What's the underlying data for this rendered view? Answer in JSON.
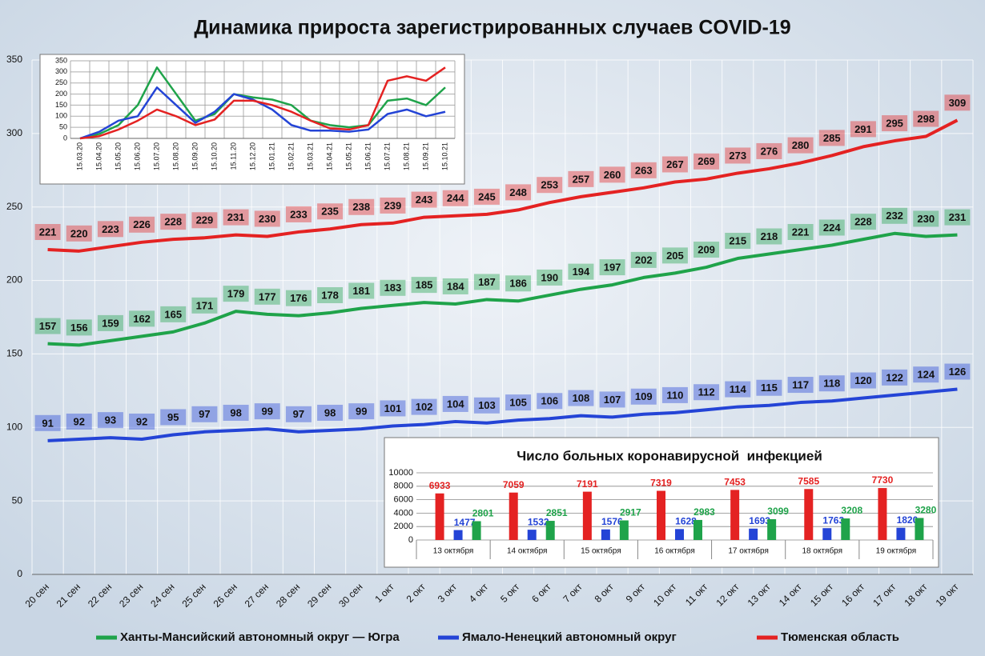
{
  "chart_data": [
    {
      "type": "line",
      "title": "Динамика прироста зарегистрированных случаев COVID-19",
      "categories": [
        "20 сен",
        "21 сен",
        "22 сен",
        "23 сен",
        "24 сен",
        "25 сен",
        "26 сен",
        "27 сен",
        "28 сен",
        "29 сен",
        "30 сен",
        "1 окт",
        "2 окт",
        "3 окт",
        "4 окт",
        "5 окт",
        "6 окт",
        "7 окт",
        "8 окт",
        "9 окт",
        "10 окт",
        "11 окт",
        "12 окт",
        "13 окт",
        "14 окт",
        "15 окт",
        "16 окт",
        "17 окт",
        "18 окт",
        "19 окт"
      ],
      "series": [
        {
          "name": "Ханты-Мансийский автономный округ — Югра",
          "color": "#1fa34a",
          "values": [
            157,
            156,
            159,
            162,
            165,
            171,
            179,
            177,
            176,
            178,
            181,
            183,
            185,
            184,
            187,
            186,
            190,
            194,
            197,
            202,
            205,
            209,
            215,
            218,
            221,
            224,
            228,
            232,
            230,
            231
          ]
        },
        {
          "name": "Ямало-Ненецкий автономный округ",
          "color": "#2444d6",
          "values": [
            91,
            92,
            93,
            92,
            95,
            97,
            98,
            99,
            97,
            98,
            99,
            101,
            102,
            104,
            103,
            105,
            106,
            108,
            107,
            109,
            110,
            112,
            114,
            115,
            117,
            118,
            120,
            122,
            124,
            126
          ]
        },
        {
          "name": "Тюменская область",
          "color": "#e42222",
          "values": [
            221,
            220,
            223,
            226,
            228,
            229,
            231,
            230,
            233,
            235,
            238,
            239,
            243,
            244,
            245,
            248,
            253,
            257,
            260,
            263,
            267,
            269,
            273,
            276,
            280,
            285,
            291,
            295,
            298,
            309
          ]
        }
      ],
      "ylim": [
        0,
        350
      ],
      "yticks": [
        0,
        50,
        100,
        150,
        200,
        250,
        300,
        350
      ],
      "grid": true,
      "legend": "bottom"
    },
    {
      "type": "line",
      "categories": [
        "15.03.20",
        "15.04.20",
        "15.05.20",
        "15.06.20",
        "15.07.20",
        "15.08.20",
        "15.09.20",
        "15.10.20",
        "15.11.20",
        "15.12.20",
        "15.01.21",
        "15.02.21",
        "15.03.21",
        "15.04.21",
        "15.05.21",
        "15.06.21",
        "15.07.21",
        "15.08.21",
        "15.09.21",
        "15.10.21"
      ],
      "series": [
        {
          "color": "#1fa34a",
          "values": [
            0,
            20,
            60,
            150,
            320,
            200,
            80,
            110,
            200,
            185,
            175,
            150,
            80,
            60,
            50,
            60,
            170,
            180,
            150,
            230
          ]
        },
        {
          "color": "#2444d6",
          "values": [
            0,
            30,
            80,
            100,
            230,
            150,
            70,
            120,
            200,
            175,
            130,
            60,
            35,
            35,
            30,
            40,
            110,
            130,
            100,
            120
          ]
        },
        {
          "color": "#e42222",
          "values": [
            0,
            10,
            40,
            80,
            130,
            100,
            60,
            85,
            170,
            170,
            150,
            120,
            80,
            45,
            40,
            60,
            260,
            280,
            260,
            320
          ]
        }
      ],
      "ylim": [
        0,
        350
      ],
      "yticks": [
        0,
        50,
        100,
        150,
        200,
        250,
        300,
        350
      ],
      "grid": true
    },
    {
      "type": "bar",
      "title": "Число больных коронавирусной  инфекцией",
      "categories": [
        "13 октября",
        "14 октября",
        "15 октября",
        "16 октября",
        "17 октября",
        "18 октября",
        "19 октября"
      ],
      "series": [
        {
          "color": "#e42222",
          "values": [
            6933,
            7059,
            7191,
            7319,
            7453,
            7585,
            7730
          ]
        },
        {
          "color": "#2444d6",
          "values": [
            1477,
            1532,
            1576,
            1628,
            1693,
            1763,
            1820
          ]
        },
        {
          "color": "#1fa34a",
          "values": [
            2801,
            2851,
            2917,
            2983,
            3099,
            3208,
            3280
          ]
        }
      ],
      "ylim": [
        0,
        10000
      ],
      "yticks": [
        0,
        2000,
        4000,
        6000,
        8000,
        10000
      ],
      "grid": true
    }
  ]
}
